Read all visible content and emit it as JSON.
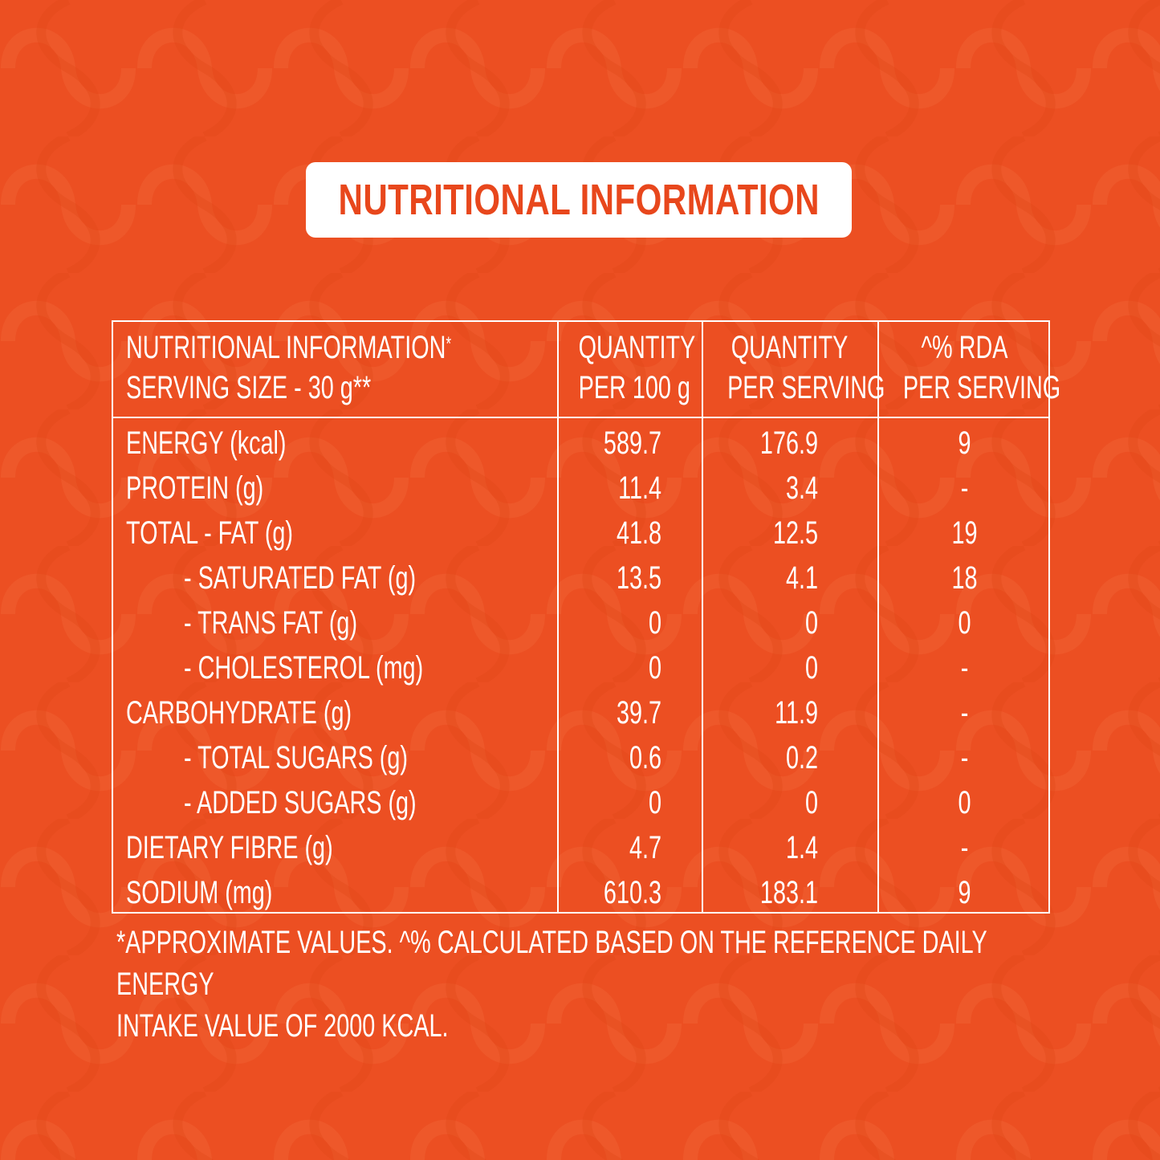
{
  "title": "NUTRITIONAL INFORMATION",
  "colors": {
    "background": "#ec4f22",
    "title_text": "#e8471c",
    "text": "#ffffff"
  },
  "table": {
    "header": {
      "col1_line1": "NUTRITIONAL INFORMATION",
      "col1_sup": "*",
      "col1_line2": "SERVING SIZE - 30 g**",
      "col2_line1": "QUANTITY",
      "col2_line2": "PER 100 g",
      "col3_line1": "QUANTITY",
      "col3_line2": "PER SERVING",
      "col4_line1": "^% RDA",
      "col4_line2": "PER SERVING"
    },
    "rows": [
      {
        "label": "ENERGY (kcal)",
        "indent": false,
        "per100": "589.7",
        "perServing": "176.9",
        "rda": "9"
      },
      {
        "label": "PROTEIN (g)",
        "indent": false,
        "per100": "11.4",
        "perServing": "3.4",
        "rda": "-"
      },
      {
        "label": "TOTAL - FAT  (g)",
        "indent": false,
        "per100": "41.8",
        "perServing": "12.5",
        "rda": "19"
      },
      {
        "label": "- SATURATED FAT (g)",
        "indent": true,
        "per100": "13.5",
        "perServing": "4.1",
        "rda": "18"
      },
      {
        "label": "- TRANS FAT (g)",
        "indent": true,
        "per100": "0",
        "perServing": "0",
        "rda": "0"
      },
      {
        "label": "- CHOLESTEROL (mg)",
        "indent": true,
        "per100": "0",
        "perServing": "0",
        "rda": "-"
      },
      {
        "label": "CARBOHYDRATE (g)",
        "indent": false,
        "per100": "39.7",
        "perServing": "11.9",
        "rda": "-"
      },
      {
        "label": "- TOTAL SUGARS (g)",
        "indent": true,
        "per100": "0.6",
        "perServing": "0.2",
        "rda": "-"
      },
      {
        "label": "- ADDED SUGARS (g)",
        "indent": true,
        "per100": "0",
        "perServing": "0",
        "rda": "0"
      },
      {
        "label": "DIETARY FIBRE (g)",
        "indent": false,
        "per100": "4.7",
        "perServing": "1.4",
        "rda": "-"
      },
      {
        "label": "SODIUM (mg)",
        "indent": false,
        "per100": "610.3",
        "perServing": "183.1",
        "rda": "9"
      }
    ]
  },
  "footnote_line1": "*APPROXIMATE VALUES. ^% CALCULATED BASED ON THE REFERENCE DAILY ENERGY",
  "footnote_line2": " INTAKE VALUE OF 2000 KCAL."
}
